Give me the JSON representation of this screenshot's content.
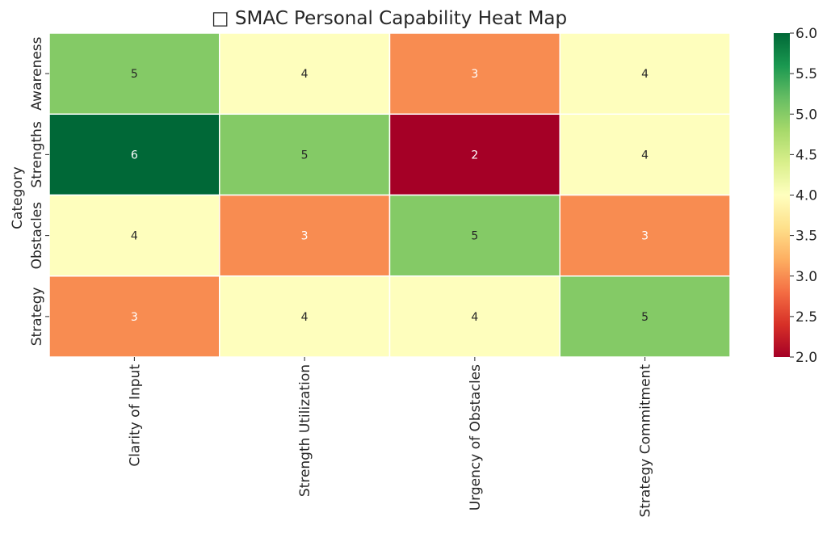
{
  "chart_data": {
    "type": "heatmap",
    "title": "□ SMAC Personal Capability Heat Map",
    "xlabel": "",
    "ylabel": "Category",
    "x_categories": [
      "Clarity of Input",
      "Strength Utilization",
      "Urgency of Obstacles",
      "Strategy Commitment"
    ],
    "y_categories": [
      "Awareness",
      "Strengths",
      "Obstacles",
      "Strategy"
    ],
    "values": [
      [
        5,
        4,
        3,
        4
      ],
      [
        6,
        5,
        2,
        4
      ],
      [
        4,
        3,
        5,
        3
      ],
      [
        3,
        4,
        4,
        5
      ]
    ],
    "annotations": true,
    "colormap": "RdYlGn",
    "colorbar": {
      "min": 2.0,
      "max": 6.0,
      "ticks": [
        "2.0",
        "2.5",
        "3.0",
        "3.5",
        "4.0",
        "4.5",
        "5.0",
        "5.5",
        "6.0"
      ]
    },
    "cell_gridlines": true,
    "colors": {
      "2": "#a50026",
      "3": "#f88c51",
      "4": "#fefebd",
      "5": "#84ca66",
      "6": "#006837"
    }
  }
}
